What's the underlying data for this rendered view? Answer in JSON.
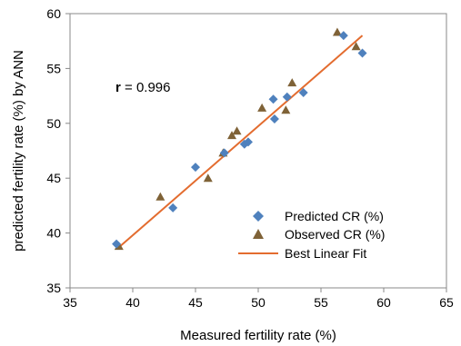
{
  "chart_data": {
    "type": "scatter",
    "xlabel": "Measured fertility rate (%)",
    "ylabel": "predicted fertility rate (%) by ANN",
    "xlim": [
      35,
      65
    ],
    "ylim": [
      35,
      60
    ],
    "xticks": [
      35,
      40,
      45,
      50,
      55,
      60,
      65
    ],
    "yticks": [
      35,
      40,
      45,
      50,
      55,
      60
    ],
    "grid": false,
    "legend_position": "bottom-right",
    "annotation": {
      "label": "r",
      "value": " = 0.996"
    },
    "series": [
      {
        "name": "Predicted CR (%)",
        "marker": "diamond",
        "color": "#4f81bd",
        "points": [
          [
            38.7,
            39.0
          ],
          [
            43.2,
            42.3
          ],
          [
            45.0,
            46.0
          ],
          [
            47.3,
            47.3
          ],
          [
            48.9,
            48.1
          ],
          [
            49.2,
            48.3
          ],
          [
            51.2,
            52.2
          ],
          [
            51.3,
            50.4
          ],
          [
            52.3,
            52.4
          ],
          [
            53.6,
            52.8
          ],
          [
            56.8,
            58.0
          ],
          [
            58.3,
            56.4
          ]
        ]
      },
      {
        "name": "Observed CR (%)",
        "marker": "triangle",
        "color": "#7f6237",
        "points": [
          [
            38.9,
            38.8
          ],
          [
            42.2,
            43.3
          ],
          [
            46.0,
            45.0
          ],
          [
            47.2,
            47.3
          ],
          [
            47.9,
            48.9
          ],
          [
            48.3,
            49.3
          ],
          [
            50.3,
            51.4
          ],
          [
            52.2,
            51.2
          ],
          [
            52.7,
            53.7
          ],
          [
            56.3,
            58.3
          ],
          [
            57.8,
            57.0
          ]
        ]
      },
      {
        "name": "Best Linear Fit",
        "type": "line",
        "color": "#e36c2f",
        "points": [
          [
            38.9,
            38.7
          ],
          [
            58.3,
            58.0
          ]
        ]
      }
    ]
  }
}
